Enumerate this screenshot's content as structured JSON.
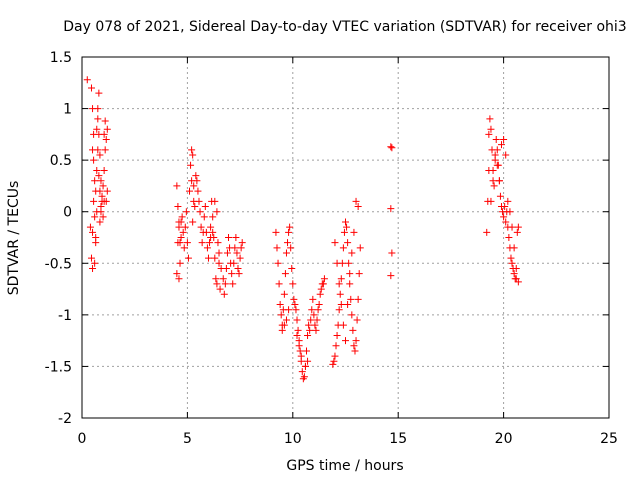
{
  "chart_data": {
    "type": "scatter",
    "title": "Day 078 of 2021, Sidereal Day-to-day VTEC variation (SDTVAR) for receiver ohi3",
    "xlabel": "GPS time / hours",
    "ylabel": "SDTVAR / TECUs",
    "xlim": [
      0,
      25
    ],
    "ylim": [
      -2,
      1.5
    ],
    "xticks": [
      0,
      5,
      10,
      15,
      20,
      25
    ],
    "xtick_labels": [
      "0",
      "5",
      "10",
      "15",
      "20",
      "25"
    ],
    "yticks": [
      1.5,
      1,
      0.5,
      0,
      -0.5,
      -1,
      -1.5,
      -2
    ],
    "ytick_labels": [
      "1.5",
      "1",
      "0.5",
      "0",
      "-0.5",
      "-1",
      "-1.5",
      "-2"
    ],
    "grid": true,
    "marker": "+",
    "series_color": "#ff0000",
    "series": [
      {
        "name": "SDTVAR",
        "x": [
          0.25,
          0.45,
          0.5,
          0.55,
          0.5,
          0.55,
          0.6,
          0.55,
          0.6,
          0.65,
          0.6,
          0.65,
          0.7,
          0.65,
          0.7,
          0.75,
          0.7,
          0.75,
          0.8,
          0.75,
          0.8,
          0.85,
          0.8,
          0.85,
          0.9,
          0.85,
          0.9,
          0.95,
          0.9,
          0.95,
          1.0,
          1.05,
          1.0,
          1.05,
          1.1,
          1.05,
          1.1,
          1.15,
          1.2,
          1.2,
          1.15,
          0.4,
          0.5,
          0.45,
          0.5,
          4.5,
          4.55,
          4.6,
          4.5,
          4.55,
          4.6,
          4.65,
          4.7,
          4.6,
          4.65,
          4.7,
          4.75,
          4.8,
          4.85,
          4.9,
          4.95,
          5.0,
          5.05,
          5.1,
          5.15,
          5.2,
          5.25,
          5.2,
          5.3,
          5.25,
          5.35,
          5.3,
          5.4,
          5.45,
          5.5,
          5.55,
          5.6,
          5.65,
          5.7,
          5.75,
          5.8,
          5.85,
          5.9,
          5.95,
          6.0,
          6.05,
          6.1,
          6.15,
          6.2,
          6.25,
          6.3,
          6.35,
          6.4,
          6.5,
          6.45,
          6.6,
          6.55,
          6.7,
          6.75,
          6.8,
          6.85,
          6.9,
          6.95,
          7.0,
          7.05,
          7.1,
          7.15,
          7.2,
          7.25,
          7.3,
          7.35,
          7.4,
          7.45,
          7.5,
          7.55,
          7.6,
          6.3,
          6.4,
          6.5,
          6.2,
          6.1,
          9.2,
          9.25,
          9.3,
          9.35,
          9.4,
          9.45,
          9.5,
          9.55,
          9.6,
          9.65,
          9.7,
          9.75,
          9.8,
          9.85,
          9.9,
          9.95,
          10.0,
          10.05,
          10.1,
          10.15,
          10.2,
          10.25,
          10.3,
          10.35,
          10.4,
          10.45,
          10.5,
          10.55,
          10.6,
          10.65,
          10.7,
          10.75,
          10.8,
          10.85,
          10.9,
          10.95,
          11.0,
          11.05,
          11.1,
          11.15,
          11.2,
          11.25,
          11.3,
          11.35,
          11.4,
          11.45,
          11.5,
          9.5,
          9.6,
          9.7,
          9.8,
          10.2,
          10.3,
          10.4,
          10.6,
          10.7,
          11.9,
          11.95,
          12.0,
          12.05,
          12.1,
          12.15,
          12.2,
          12.25,
          12.3,
          12.35,
          12.4,
          12.45,
          12.5,
          12.55,
          12.6,
          12.65,
          12.7,
          12.75,
          12.8,
          12.85,
          12.9,
          12.95,
          13.0,
          13.05,
          13.1,
          13.15,
          13.2,
          12.0,
          12.1,
          12.2,
          12.3,
          12.4,
          12.5,
          12.6,
          12.7,
          12.8,
          12.9,
          13.0,
          13.1,
          14.65,
          14.7,
          14.65,
          14.7,
          14.65,
          19.2,
          19.25,
          19.3,
          19.3,
          19.35,
          19.4,
          19.45,
          19.5,
          19.55,
          19.6,
          19.65,
          19.7,
          19.75,
          19.8,
          19.85,
          19.9,
          19.95,
          20.0,
          20.05,
          20.1,
          20.15,
          20.2,
          20.25,
          20.3,
          20.35,
          20.4,
          20.45,
          20.5,
          20.55,
          20.6,
          20.65,
          20.7,
          19.4,
          19.5,
          19.6,
          19.7,
          19.8,
          19.9,
          20.0,
          20.1,
          20.2,
          20.3,
          20.4,
          20.5,
          20.6,
          20.7
        ],
        "y": [
          1.28,
          1.2,
          1.0,
          0.75,
          0.6,
          0.5,
          0.3,
          0.1,
          -0.05,
          -0.3,
          -0.5,
          -0.25,
          0.0,
          0.2,
          0.4,
          0.6,
          0.8,
          1.0,
          1.15,
          0.9,
          0.75,
          0.55,
          0.35,
          0.2,
          0.05,
          -0.1,
          0.0,
          0.15,
          0.3,
          0.1,
          -0.05,
          0.1,
          0.25,
          0.4,
          0.6,
          0.75,
          0.88,
          0.7,
          0.8,
          0.2,
          0.1,
          -0.15,
          -0.2,
          -0.45,
          -0.55,
          -0.6,
          -0.3,
          -0.1,
          0.25,
          0.05,
          -0.15,
          -0.3,
          -0.1,
          -0.65,
          -0.5,
          -0.25,
          -0.05,
          -0.2,
          -0.35,
          -0.15,
          0.0,
          -0.3,
          -0.45,
          0.2,
          0.45,
          0.6,
          0.55,
          0.3,
          0.1,
          -0.1,
          0.05,
          0.25,
          0.35,
          0.3,
          0.2,
          0.1,
          0.0,
          -0.15,
          -0.3,
          -0.2,
          -0.05,
          0.05,
          -0.2,
          -0.35,
          -0.45,
          -0.3,
          -0.15,
          0.1,
          -0.05,
          -0.25,
          -0.45,
          -0.65,
          -0.7,
          -0.5,
          -0.3,
          -0.55,
          -0.75,
          -0.65,
          -0.8,
          -0.7,
          -0.55,
          -0.4,
          -0.25,
          -0.35,
          -0.5,
          -0.6,
          -0.7,
          -0.5,
          -0.35,
          -0.25,
          -0.4,
          -0.55,
          -0.6,
          -0.45,
          -0.35,
          -0.3,
          0.1,
          0.0,
          -0.4,
          -0.2,
          -0.25,
          -0.2,
          -0.35,
          -0.5,
          -0.7,
          -0.9,
          -1.0,
          -1.1,
          -0.95,
          -0.8,
          -0.6,
          -0.4,
          -0.3,
          -0.2,
          -0.15,
          -0.35,
          -0.55,
          -0.7,
          -0.85,
          -0.9,
          -0.95,
          -1.05,
          -1.15,
          -1.25,
          -1.35,
          -1.45,
          -1.55,
          -1.62,
          -1.6,
          -1.5,
          -1.35,
          -1.2,
          -1.1,
          -1.15,
          -1.05,
          -0.95,
          -0.85,
          -1.0,
          -1.1,
          -1.15,
          -1.05,
          -0.95,
          -0.9,
          -0.8,
          -0.75,
          -0.7,
          -0.7,
          -0.65,
          -1.15,
          -1.1,
          -1.05,
          -0.95,
          -1.2,
          -1.3,
          -1.4,
          -1.5,
          -1.45,
          -1.48,
          -1.45,
          -1.4,
          -1.3,
          -1.2,
          -1.1,
          -0.95,
          -0.8,
          -0.65,
          -0.5,
          -0.35,
          -0.2,
          -0.1,
          -0.15,
          -0.3,
          -0.5,
          -0.7,
          -0.85,
          -1.0,
          -1.15,
          -1.3,
          -1.35,
          -1.25,
          -1.05,
          -0.85,
          -0.6,
          -0.35,
          -0.3,
          -0.5,
          -0.7,
          -0.9,
          -1.1,
          -1.25,
          -0.9,
          -0.6,
          -0.4,
          -0.2,
          0.1,
          0.05,
          0.63,
          0.62,
          0.03,
          -0.4,
          -0.62,
          -0.2,
          0.1,
          0.4,
          0.75,
          0.9,
          0.8,
          0.6,
          0.4,
          0.25,
          0.55,
          0.7,
          0.6,
          0.45,
          0.3,
          0.15,
          0.05,
          0.0,
          -0.05,
          0.05,
          -0.1,
          0.0,
          -0.15,
          -0.25,
          -0.35,
          -0.45,
          -0.5,
          -0.55,
          -0.6,
          -0.65,
          -0.65,
          -0.2,
          -0.15,
          0.1,
          0.3,
          0.5,
          0.45,
          0.3,
          0.65,
          0.7,
          0.55,
          0.1,
          0.0,
          -0.15,
          -0.35,
          -0.55,
          -0.68
        ]
      }
    ]
  }
}
